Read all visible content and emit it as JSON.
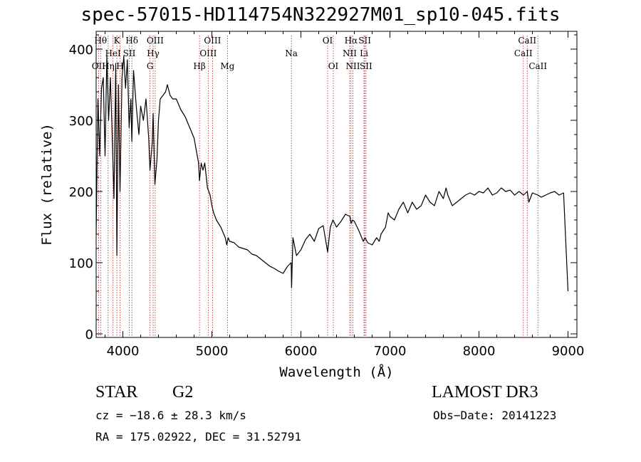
{
  "chart_data": {
    "type": "line",
    "title": "spec-57015-HD114754N322927M01_sp10-045.fits",
    "xlabel": "Wavelength (Å)",
    "ylabel": "Flux (relative)",
    "xlim": [
      3700,
      9100
    ],
    "ylim": [
      -5,
      425
    ],
    "xticks": [
      4000,
      5000,
      6000,
      7000,
      8000,
      9000
    ],
    "yticks": [
      0,
      100,
      200,
      300,
      400
    ],
    "series": [
      {
        "x": [
          3700,
          3720,
          3740,
          3760,
          3780,
          3800,
          3820,
          3840,
          3860,
          3880,
          3900,
          3920,
          3933,
          3950,
          3968,
          3990,
          4010,
          4030,
          4050,
          4070,
          4090,
          4101,
          4120,
          4150,
          4180,
          4200,
          4230,
          4260,
          4290,
          4305,
          4330,
          4340,
          4360,
          4383,
          4400,
          4420,
          4450,
          4480,
          4500,
          4530,
          4560,
          4600,
          4650,
          4700,
          4750,
          4800,
          4850,
          4861,
          4880,
          4900,
          4920,
          4950,
          4980,
          5000,
          5020,
          5050,
          5100,
          5150,
          5167,
          5183,
          5200,
          5250,
          5300,
          5350,
          5400,
          5450,
          5500,
          5550,
          5600,
          5650,
          5700,
          5750,
          5800,
          5850,
          5890,
          5895,
          5910,
          5950,
          6000,
          6050,
          6100,
          6150,
          6200,
          6250,
          6300,
          6330,
          6360,
          6400,
          6450,
          6500,
          6550,
          6563,
          6580,
          6600,
          6650,
          6700,
          6720,
          6750,
          6800,
          6850,
          6880,
          6900,
          6950,
          6980,
          7000,
          7050,
          7100,
          7150,
          7200,
          7250,
          7300,
          7350,
          7400,
          7450,
          7500,
          7550,
          7600,
          7630,
          7650,
          7700,
          7750,
          7800,
          7850,
          7900,
          7950,
          8000,
          8050,
          8100,
          8150,
          8200,
          8250,
          8300,
          8350,
          8400,
          8450,
          8500,
          8542,
          8560,
          8600,
          8662,
          8700,
          8750,
          8800,
          8850,
          8900,
          8950,
          9000
        ],
        "y": [
          140,
          330,
          250,
          345,
          360,
          250,
          390,
          300,
          360,
          280,
          190,
          380,
          110,
          350,
          200,
          360,
          390,
          345,
          385,
          290,
          330,
          270,
          370,
          320,
          280,
          320,
          300,
          330,
          275,
          230,
          270,
          310,
          210,
          245,
          300,
          330,
          335,
          340,
          350,
          335,
          330,
          330,
          315,
          305,
          290,
          275,
          240,
          215,
          240,
          230,
          240,
          205,
          195,
          180,
          170,
          160,
          150,
          135,
          125,
          135,
          130,
          128,
          122,
          120,
          118,
          112,
          110,
          105,
          100,
          95,
          92,
          88,
          85,
          95,
          100,
          65,
          135,
          110,
          118,
          132,
          140,
          130,
          148,
          152,
          115,
          150,
          160,
          150,
          158,
          168,
          165,
          155,
          160,
          158,
          145,
          130,
          135,
          128,
          125,
          135,
          130,
          140,
          150,
          170,
          165,
          160,
          175,
          185,
          170,
          185,
          175,
          180,
          195,
          185,
          180,
          200,
          190,
          205,
          195,
          180,
          185,
          190,
          195,
          198,
          195,
          200,
          198,
          205,
          195,
          198,
          205,
          200,
          202,
          195,
          200,
          195,
          200,
          185,
          198,
          195,
          192,
          195,
          198,
          200,
          195,
          198,
          60
        ]
      }
    ],
    "line_markers": [
      {
        "label": "OII",
        "x": 3727,
        "row": 2
      },
      {
        "label": "Hθ",
        "x": 3750,
        "row": 0
      },
      {
        "label": "Hη",
        "x": 3835,
        "row": 2
      },
      {
        "label": "HeI",
        "x": 3889,
        "row": 1
      },
      {
        "label": "K",
        "x": 3933,
        "row": 0
      },
      {
        "label": "H",
        "x": 3968,
        "row": 2
      },
      {
        "label": "SII",
        "x": 4072,
        "row": 1
      },
      {
        "label": "Hδ",
        "x": 4101,
        "row": 0
      },
      {
        "label": "Hγ",
        "x": 4340,
        "row": 1
      },
      {
        "label": "G",
        "x": 4305,
        "row": 2
      },
      {
        "label": "OIII",
        "x": 4363,
        "row": 0
      },
      {
        "label": "Hβ",
        "x": 4861,
        "row": 2
      },
      {
        "label": "OIII",
        "x": 5007,
        "row": 0
      },
      {
        "label": "OIII",
        "x": 4959,
        "row": 1
      },
      {
        "label": "Mg",
        "x": 5175,
        "row": 2
      },
      {
        "label": "Na",
        "x": 5893,
        "row": 1
      },
      {
        "label": "OI",
        "x": 6300,
        "row": 0
      },
      {
        "label": "OI",
        "x": 6364,
        "row": 2
      },
      {
        "label": "Hα",
        "x": 6563,
        "row": 0
      },
      {
        "label": "NII",
        "x": 6548,
        "row": 1
      },
      {
        "label": "NII",
        "x": 6584,
        "row": 2
      },
      {
        "label": "SII",
        "x": 6717,
        "row": 0
      },
      {
        "label": "Li",
        "x": 6708,
        "row": 1
      },
      {
        "label": "SII",
        "x": 6731,
        "row": 2
      },
      {
        "label": "CaII",
        "x": 8542,
        "row": 0
      },
      {
        "label": "CaII",
        "x": 8498,
        "row": 1
      },
      {
        "label": "CaII",
        "x": 8662,
        "row": 2
      }
    ],
    "legend": "none",
    "grid": false
  },
  "info": {
    "class": "STAR",
    "subclass": "G2",
    "survey": "LAMOST DR3",
    "cz": "cz = −18.6 ± 28.3 km/s",
    "obs_date": "Obs−Date: 20141223",
    "coords": "RA = 175.02922, DEC =  31.52791"
  },
  "colors": {
    "spectrum": "#000000",
    "markers": "#b22222",
    "axes": "#000000"
  }
}
